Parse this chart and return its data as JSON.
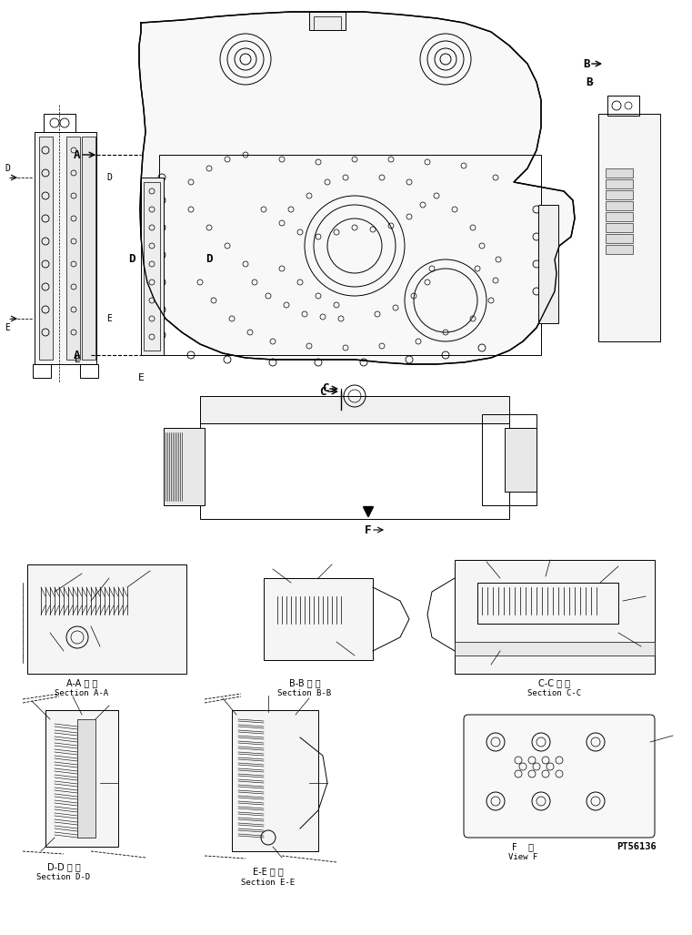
{
  "bg_color": "#ffffff",
  "line_color": "#000000",
  "line_width": 0.7,
  "fig_width": 7.61,
  "fig_height": 10.27,
  "dpi": 100,
  "labels": {
    "section_aa_jp": "A-A 断 面",
    "section_aa_en": "Section A-A",
    "section_bb_jp": "B-B 断 面",
    "section_bb_en": "Section B-B",
    "section_cc_jp": "C-C 断 面",
    "section_cc_en": "Section C-C",
    "section_dd_jp": "D-D 断 面",
    "section_dd_en": "Section D-D",
    "section_ee_jp": "E-E 断 面",
    "section_ee_en": "Section E-E",
    "view_f_jp": "F    視",
    "view_f_en": "View F",
    "part_number": "PT56136",
    "label_A": "A",
    "label_B": "B",
    "label_C": "C",
    "label_D": "D",
    "label_E": "E",
    "label_F": "F"
  },
  "font_size_label": 7,
  "font_size_section": 6.5,
  "font_size_partnumber": 7.5
}
